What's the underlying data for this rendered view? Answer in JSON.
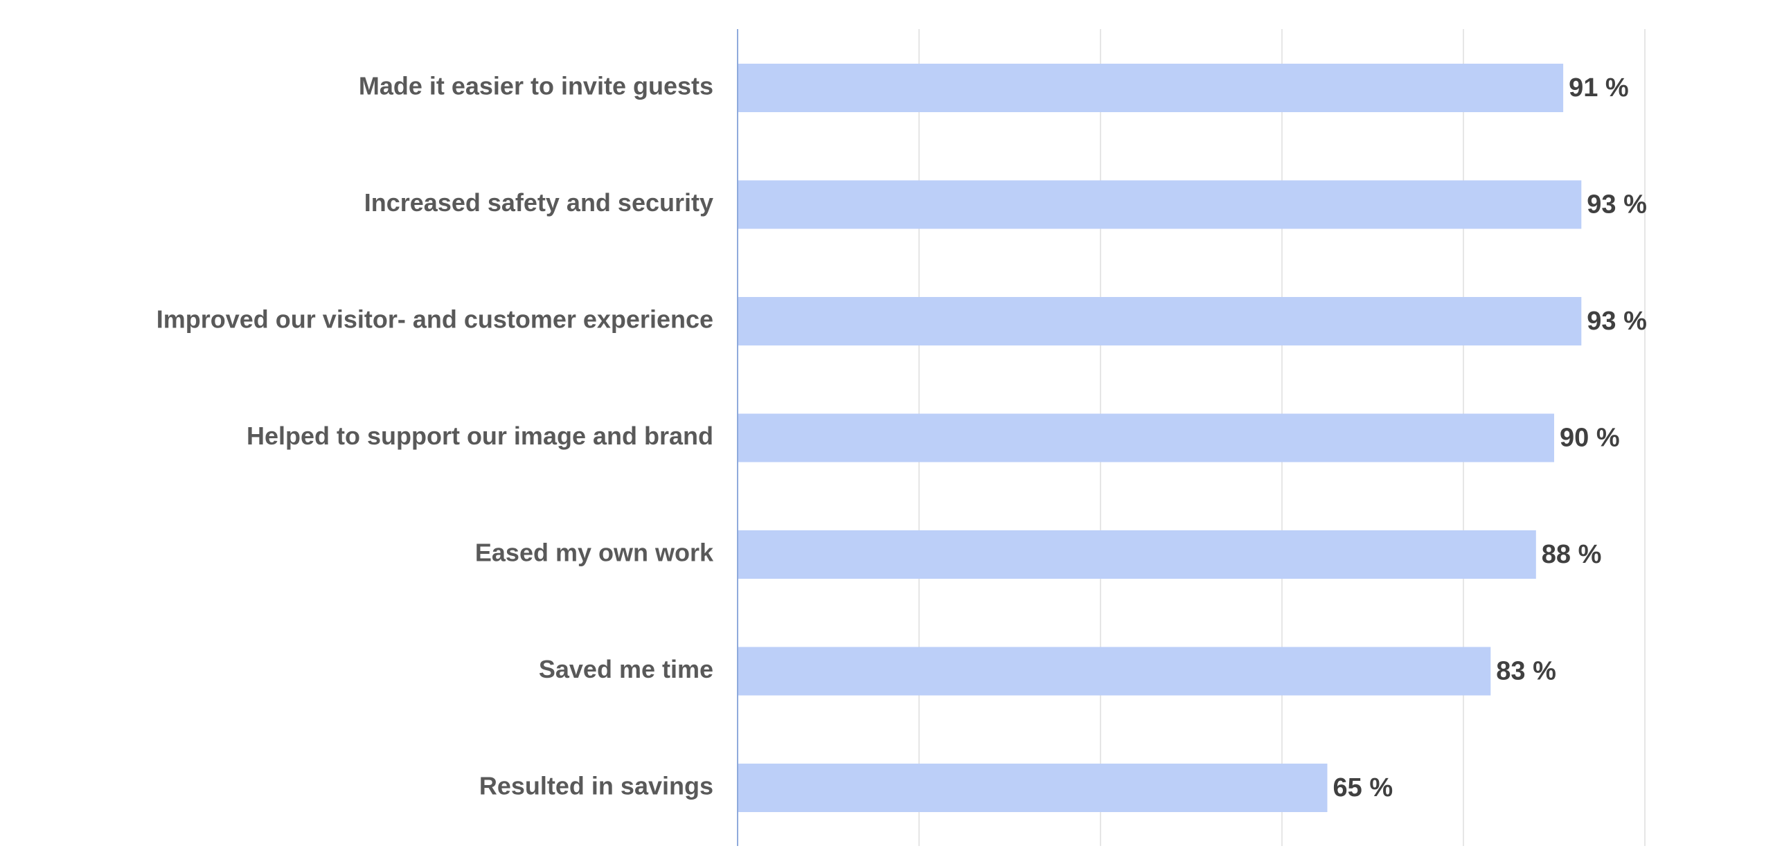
{
  "chart_data": {
    "type": "bar",
    "orientation": "horizontal",
    "categories": [
      "Made it easier to invite guests",
      "Increased safety and security",
      "Improved our visitor- and customer experience",
      "Helped to support our image and brand",
      "Eased my own work",
      "Saved me time",
      "Resulted in savings"
    ],
    "values": [
      91,
      93,
      93,
      90,
      88,
      83,
      65
    ],
    "value_labels": [
      "91 %",
      "93 %",
      "93 %",
      "90 %",
      "88 %",
      "83 %",
      "65 %"
    ],
    "title": "",
    "xlabel": "",
    "ylabel": "",
    "xlim": [
      0,
      100
    ],
    "x_gridlines": [
      20,
      40,
      60,
      80,
      100
    ],
    "grid": true,
    "legend": "none",
    "bar_color": "#bccff8",
    "axis_color": "#8faadc",
    "grid_color": "#e6e6e6",
    "category_label_color": "#595959",
    "value_label_color": "#404040"
  }
}
